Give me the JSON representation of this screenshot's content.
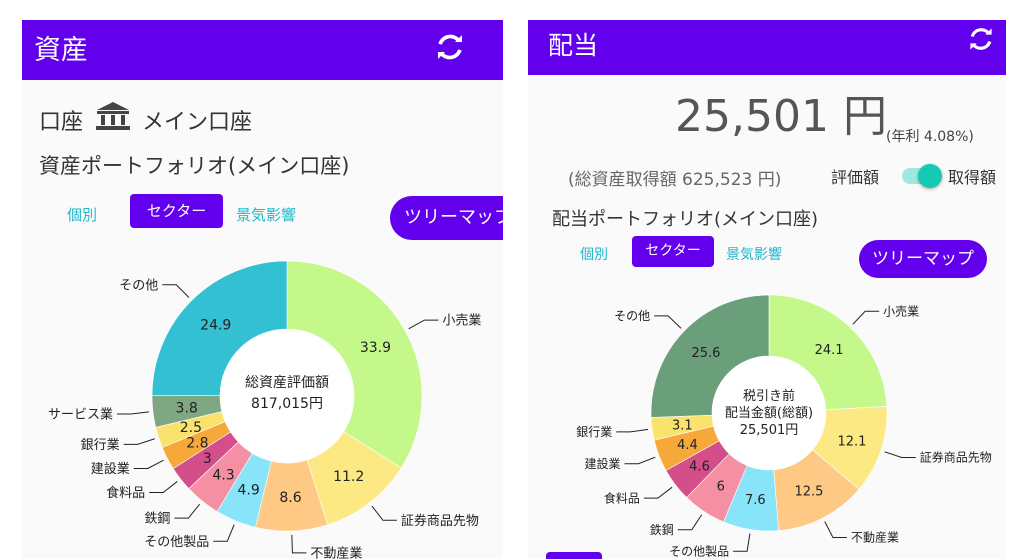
{
  "left": {
    "title": "資産",
    "account_label": "口座",
    "account_name": "メイン口座",
    "portfolio_title": "資産ポートフォリオ(メイン口座)",
    "tabs": [
      "個別",
      "セクター",
      "景気影響"
    ],
    "treemap_button": "ツリーマップ",
    "center_line1": "総資産評価額",
    "center_line2": "817,015円"
  },
  "right": {
    "title": "配当",
    "amount": "25,501 円",
    "annual_rate": "(年利 4.08%)",
    "cost_basis": "(総資産取得額 625,523 円)",
    "toggle_left": "評価額",
    "toggle_right": "取得額",
    "portfolio_title": "配当ポートフォリオ(メイン口座)",
    "tabs": [
      "個別",
      "セクター",
      "景気影響"
    ],
    "treemap_button": "ツリーマップ",
    "center_line1": "税引き前",
    "center_line2": "配当金額(総額)",
    "center_line3": "25,501円"
  },
  "colors": {
    "appbar": "#6200ee",
    "accent_teal": "#1fb7c9",
    "toggle": "#16c9b2"
  },
  "chart_data": [
    {
      "type": "pie",
      "title": "総資産評価額 817,015円",
      "categories": [
        "小売業",
        "証券商品先物",
        "不動産業",
        "その他製品",
        "鉄鋼",
        "食料品",
        "建設業",
        "銀行業",
        "サービス業",
        "その他"
      ],
      "values": [
        33.9,
        11.2,
        8.6,
        4.9,
        4.3,
        3.0,
        2.8,
        2.5,
        3.8,
        24.9
      ],
      "colors": [
        "#c4f88a",
        "#fde983",
        "#fdc985",
        "#87e4f9",
        "#f58fa3",
        "#d44e8a",
        "#f7a83a",
        "#f9e36d",
        "#7fa882",
        "#34c0d3"
      ]
    },
    {
      "type": "pie",
      "title": "税引き前 配当金額(総額) 25,501円",
      "categories": [
        "小売業",
        "証券商品先物",
        "不動産業",
        "その他製品",
        "鉄鋼",
        "食料品",
        "建設業",
        "銀行業",
        "その他"
      ],
      "values": [
        24.1,
        12.1,
        12.5,
        7.6,
        6.0,
        4.6,
        4.4,
        3.1,
        25.6
      ],
      "colors": [
        "#c4f88a",
        "#fde983",
        "#fdc985",
        "#87e4f9",
        "#f58fa3",
        "#d44e8a",
        "#f7a83a",
        "#f9e36d",
        "#6b9e7a"
      ]
    }
  ]
}
